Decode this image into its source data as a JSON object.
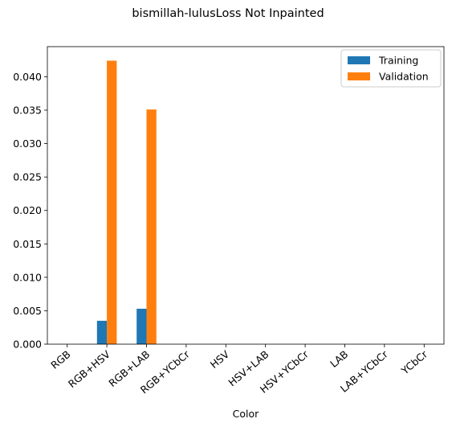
{
  "chart_data": {
    "type": "bar",
    "title": "bismillah-lulusLoss Not Inpainted",
    "xlabel": "Color",
    "ylabel": "",
    "categories": [
      "RGB",
      "RGB+HSV",
      "RGB+LAB",
      "RGB+YCbCr",
      "HSV",
      "HSV+LAB",
      "HSV+YCbCr",
      "LAB",
      "LAB+YCbCr",
      "YCbCr"
    ],
    "series": [
      {
        "name": "Training",
        "color": "#1f77b4",
        "values": [
          0,
          0.0035,
          0.0053,
          0,
          0,
          0,
          0,
          0,
          0,
          0
        ]
      },
      {
        "name": "Validation",
        "color": "#ff7f0e",
        "values": [
          0,
          0.0424,
          0.0351,
          0,
          0,
          0,
          0,
          0,
          0,
          0
        ]
      }
    ],
    "ylim": [
      0,
      0.0445
    ],
    "yticks": [
      "0.000",
      "0.005",
      "0.010",
      "0.015",
      "0.020",
      "0.025",
      "0.030",
      "0.035",
      "0.040"
    ],
    "grid": false,
    "legend_position": "top-right"
  }
}
